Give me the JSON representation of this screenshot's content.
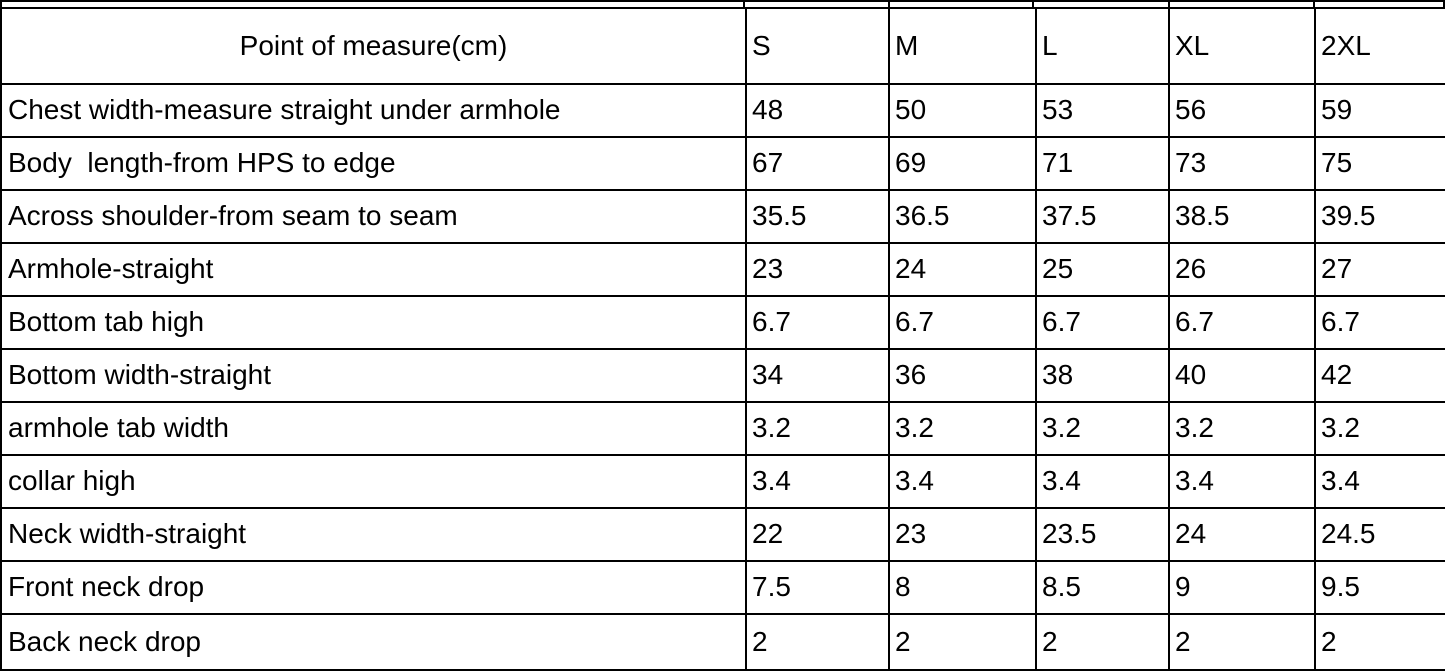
{
  "table": {
    "header": {
      "point_of_measure": "Point of measure(cm)",
      "sizes": [
        "S",
        "M",
        "L",
        "XL",
        "2XL"
      ]
    },
    "rows": [
      {
        "label": "Chest width-measure straight under armhole",
        "values": [
          "48",
          "50",
          "53",
          "56",
          "59"
        ]
      },
      {
        "label": "Body  length-from HPS to edge",
        "values": [
          "67",
          "69",
          "71",
          "73",
          "75"
        ]
      },
      {
        "label": "Across shoulder-from seam to seam",
        "values": [
          "35.5",
          "36.5",
          "37.5",
          "38.5",
          "39.5"
        ]
      },
      {
        "label": "Armhole-straight",
        "values": [
          "23",
          "24",
          "25",
          "26",
          "27"
        ]
      },
      {
        "label": "Bottom tab high",
        "values": [
          "6.7",
          "6.7",
          "6.7",
          "6.7",
          "6.7"
        ]
      },
      {
        "label": "Bottom width-straight",
        "values": [
          "34",
          "36",
          "38",
          "40",
          "42"
        ]
      },
      {
        "label": "armhole tab width",
        "values": [
          "3.2",
          "3.2",
          "3.2",
          "3.2",
          "3.2"
        ]
      },
      {
        "label": "collar high",
        "values": [
          "3.4",
          "3.4",
          "3.4",
          "3.4",
          "3.4"
        ]
      },
      {
        "label": "Neck width-straight",
        "values": [
          "22",
          "23",
          "23.5",
          "24",
          "24.5"
        ]
      },
      {
        "label": "Front neck drop",
        "values": [
          "7.5",
          "8",
          "8.5",
          "9",
          "9.5"
        ]
      },
      {
        "label": "Back neck drop",
        "values": [
          "2",
          "2",
          "2",
          "2",
          "2"
        ]
      }
    ]
  },
  "chart_data": {
    "type": "table",
    "title": "Point of measure(cm)",
    "columns": [
      "Point of measure(cm)",
      "S",
      "M",
      "L",
      "XL",
      "2XL"
    ],
    "rows": [
      [
        "Chest width-measure straight under armhole",
        48,
        50,
        53,
        56,
        59
      ],
      [
        "Body  length-from HPS to edge",
        67,
        69,
        71,
        73,
        75
      ],
      [
        "Across shoulder-from seam to seam",
        35.5,
        36.5,
        37.5,
        38.5,
        39.5
      ],
      [
        "Armhole-straight",
        23,
        24,
        25,
        26,
        27
      ],
      [
        "Bottom tab high",
        6.7,
        6.7,
        6.7,
        6.7,
        6.7
      ],
      [
        "Bottom width-straight",
        34,
        36,
        38,
        40,
        42
      ],
      [
        "armhole tab width",
        3.2,
        3.2,
        3.2,
        3.2,
        3.2
      ],
      [
        "collar high",
        3.4,
        3.4,
        3.4,
        3.4,
        3.4
      ],
      [
        "Neck width-straight",
        22,
        23,
        23.5,
        24,
        24.5
      ],
      [
        "Front neck drop",
        7.5,
        8,
        8.5,
        9,
        9.5
      ],
      [
        "Back neck drop",
        2,
        2,
        2,
        2,
        2
      ]
    ],
    "layout": {
      "grid": true,
      "header_align": "left",
      "first_column_header_align": "center"
    }
  },
  "colors": {
    "border": "#000000",
    "text": "#000000",
    "background": "#ffffff"
  }
}
